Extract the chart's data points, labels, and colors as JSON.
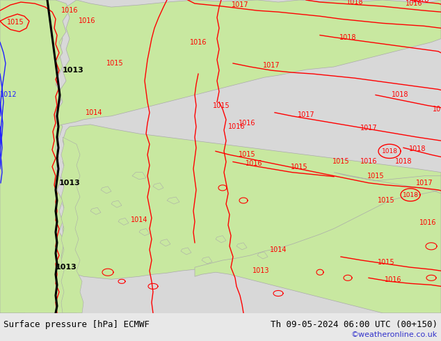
{
  "title_left": "Surface pressure [hPa] ECMWF",
  "title_right": "Th 09-05-2024 06:00 UTC (00+150)",
  "watermark": "©weatheronline.co.uk",
  "sea_color": "#d8d8d8",
  "land_color": "#c8e8a0",
  "coast_color": "#aaaaaa",
  "red": "#ff0000",
  "blue": "#2020ff",
  "black": "#000000",
  "bottom_bar_color": "#e8e8e8",
  "figsize": [
    6.34,
    4.9
  ],
  "dpi": 100,
  "title_fontsize": 9,
  "watermark_color": "#3333cc",
  "watermark_fontsize": 8,
  "label_fontsize": 7
}
